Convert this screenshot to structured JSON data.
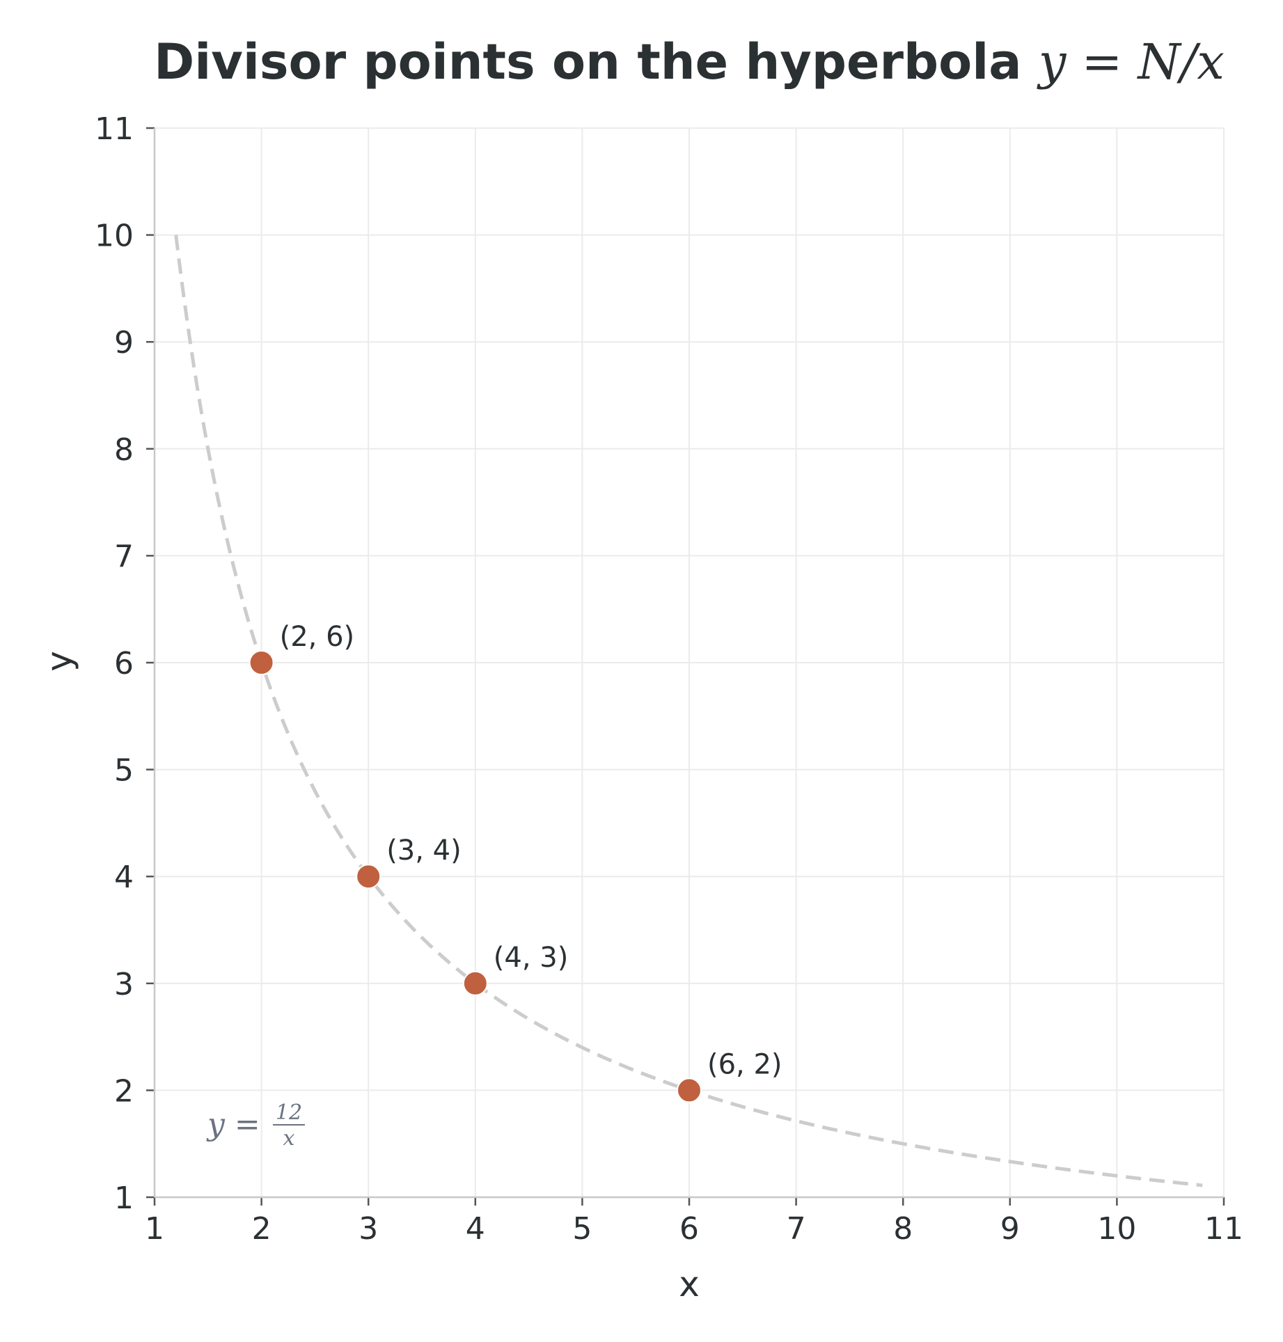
{
  "chart_data": {
    "type": "scatter",
    "title": "Divisor points on the hyperbola y = N/x",
    "title_parts": {
      "text": "Divisor points on the hyperbola ",
      "math": "y = N/x"
    },
    "xlabel": "x",
    "ylabel": "y",
    "xlim": [
      1,
      11
    ],
    "ylim": [
      1,
      11
    ],
    "x_ticks": [
      "1",
      "2",
      "3",
      "4",
      "5",
      "6",
      "7",
      "8",
      "9",
      "10",
      "11"
    ],
    "y_ticks": [
      "1",
      "2",
      "3",
      "4",
      "5",
      "6",
      "7",
      "8",
      "9",
      "10",
      "11"
    ],
    "grid": true,
    "curve": {
      "equation": "y = 12/x",
      "N": 12,
      "x_range": [
        1.2,
        10.8
      ],
      "label": {
        "prefix": "y =",
        "numerator": "12",
        "denominator": "x"
      }
    },
    "points": [
      {
        "x": 2,
        "y": 6,
        "label": "(2, 6)"
      },
      {
        "x": 3,
        "y": 4,
        "label": "(3, 4)"
      },
      {
        "x": 4,
        "y": 3,
        "label": "(4, 3)"
      },
      {
        "x": 6,
        "y": 2,
        "label": "(6, 2)"
      }
    ],
    "colors": {
      "points": "#c0603e",
      "curve": "#cccccc",
      "grid": "#ebebeb",
      "axis": "#c8c8c8",
      "text": "#2b3033",
      "curve_label": "#6b7280"
    }
  }
}
